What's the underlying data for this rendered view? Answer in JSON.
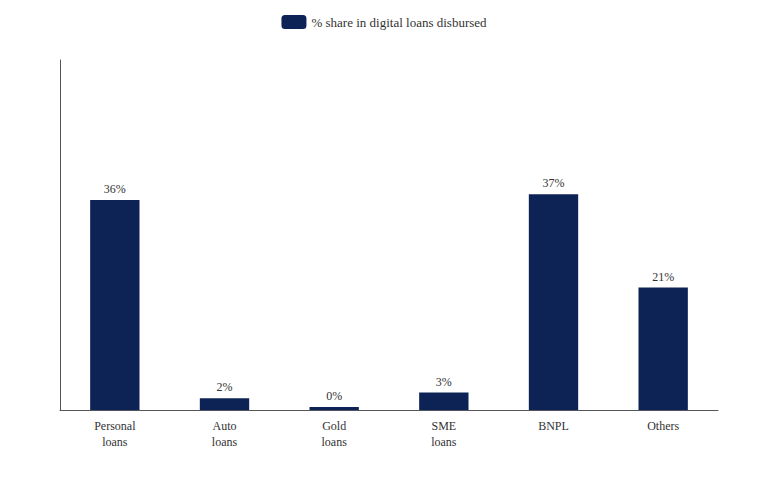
{
  "chart_data": {
    "type": "bar",
    "categories": [
      "Personal\nloans",
      "Auto\nloans",
      "Gold\nloans",
      "SME\nloans",
      "BNPL",
      "Others"
    ],
    "series": [
      {
        "name": "% share in digital loans disbursed",
        "color": "#0d2255",
        "values": [
          36,
          2,
          0.5,
          3,
          37,
          21
        ],
        "value_labels": [
          "36%",
          "2%",
          "0%",
          "3%",
          "37%",
          "21%"
        ]
      }
    ],
    "ylim": [
      0,
      60
    ],
    "grid": false,
    "legend": "top",
    "data_labels": true,
    "tick_labels": "x"
  }
}
